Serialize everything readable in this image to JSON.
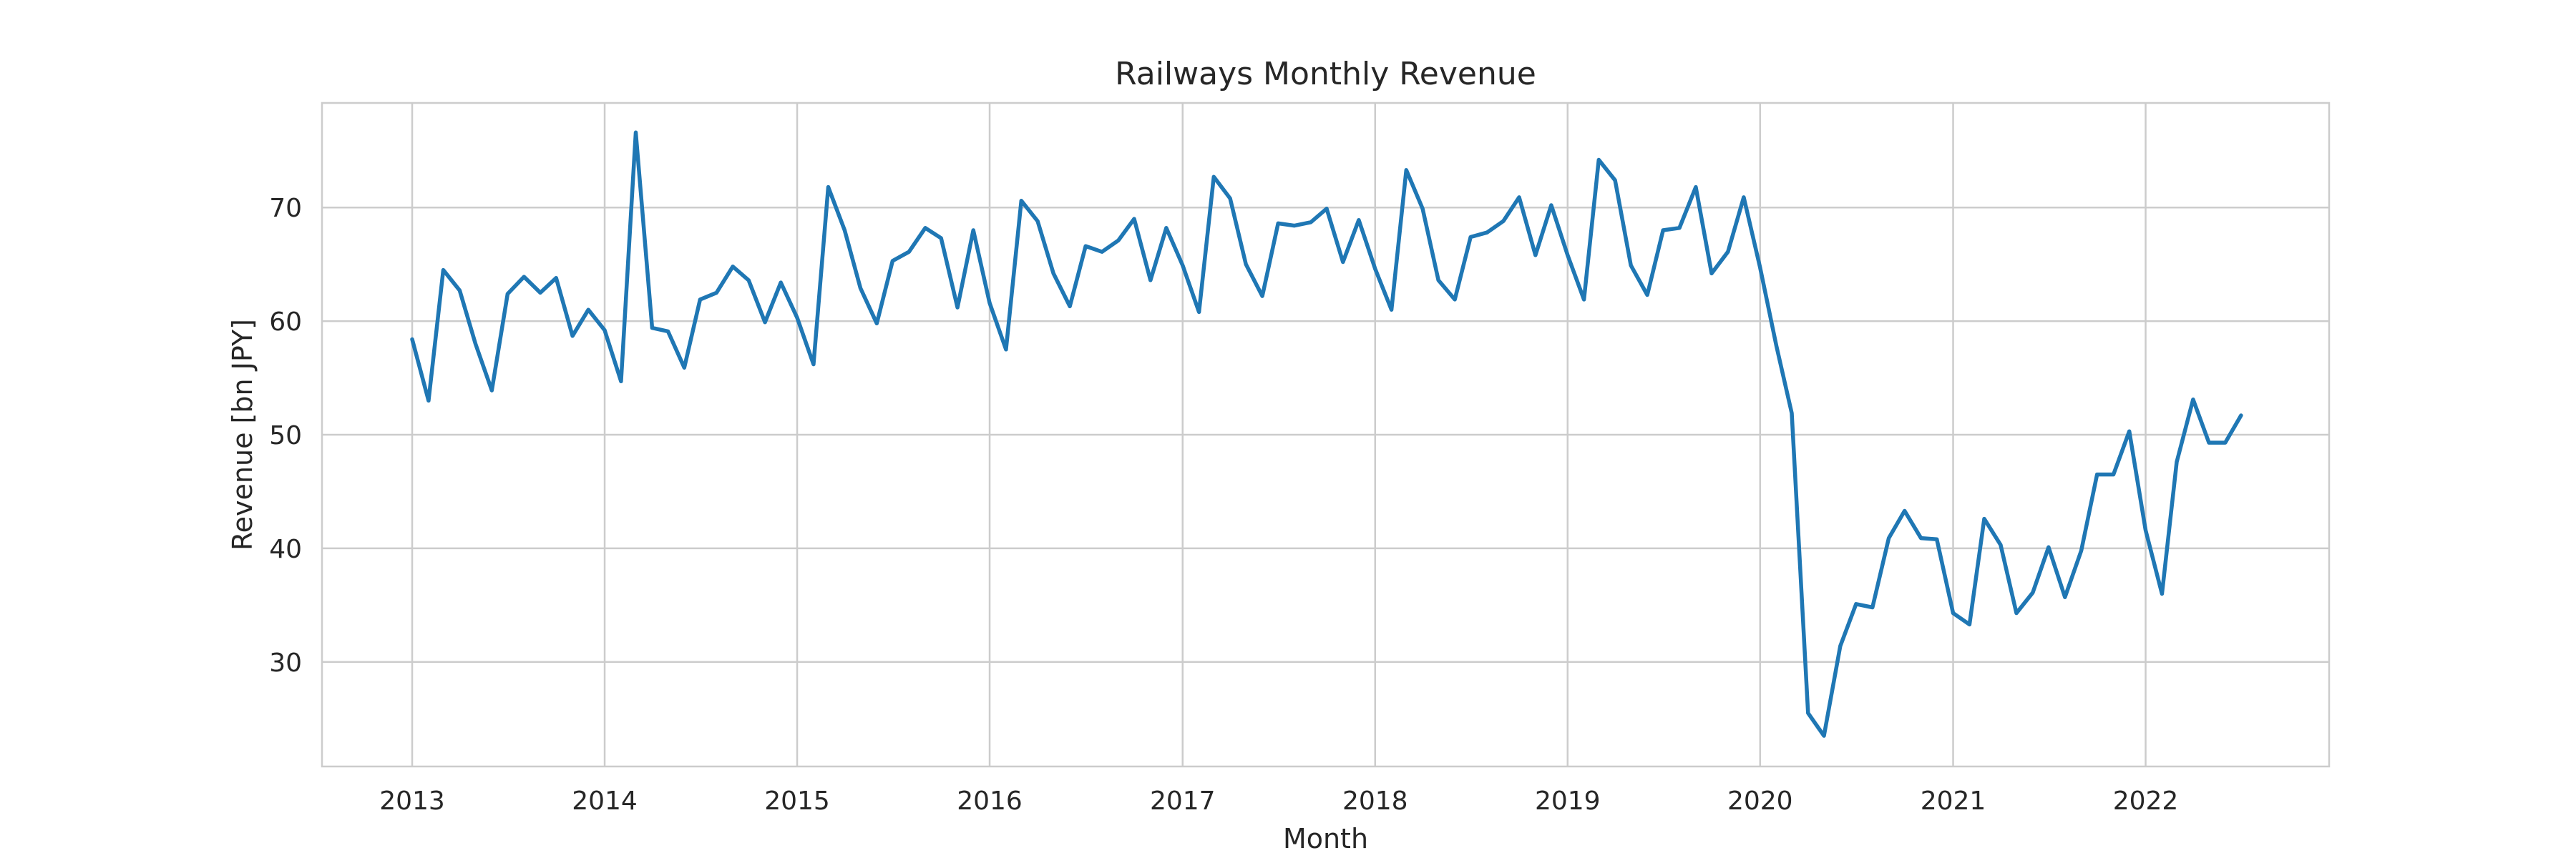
{
  "chart_data": {
    "type": "line",
    "title": "Railways Monthly Revenue",
    "xlabel": "Month",
    "ylabel": "Revenue [bn JPY]",
    "x_start": "2013-01",
    "x_end": "2022-07",
    "xlim": [
      "2012-07-14",
      "2022-12-15"
    ],
    "ylim": [
      20.8,
      79.2
    ],
    "x_ticks": [
      "2013",
      "2014",
      "2015",
      "2016",
      "2017",
      "2018",
      "2019",
      "2020",
      "2021",
      "2022"
    ],
    "y_ticks": [
      30,
      40,
      50,
      60,
      70
    ],
    "grid": true,
    "legend": "none",
    "series": [
      {
        "color": "#1f77b4",
        "values": [
          58.4,
          53.0,
          64.5,
          62.7,
          58.0,
          53.9,
          62.4,
          63.9,
          62.5,
          63.8,
          58.7,
          61.0,
          59.2,
          54.7,
          76.6,
          59.4,
          59.1,
          55.9,
          61.9,
          62.5,
          64.8,
          63.6,
          59.9,
          63.4,
          60.3,
          56.2,
          71.8,
          68.0,
          62.9,
          59.8,
          65.3,
          66.1,
          68.2,
          67.3,
          61.2,
          68.0,
          61.6,
          57.5,
          70.6,
          68.8,
          64.2,
          61.3,
          66.6,
          66.1,
          67.1,
          69.0,
          63.6,
          68.2,
          64.9,
          60.8,
          72.7,
          70.8,
          65.0,
          62.2,
          68.6,
          68.4,
          68.7,
          69.9,
          65.2,
          68.9,
          64.6,
          61.0,
          73.3,
          69.9,
          63.6,
          61.9,
          67.4,
          67.8,
          68.8,
          70.9,
          65.8,
          70.2,
          65.8,
          61.9,
          74.2,
          72.4,
          64.9,
          62.3,
          68.0,
          68.2,
          71.8,
          64.2,
          66.1,
          70.9,
          64.7,
          57.8,
          51.9,
          25.5,
          23.5,
          31.4,
          35.1,
          34.8,
          40.9,
          43.3,
          40.9,
          40.8,
          34.3,
          33.3,
          42.6,
          40.3,
          34.3,
          36.1,
          40.1,
          35.7,
          39.8,
          46.5,
          46.5,
          50.3,
          41.6,
          36.0,
          47.6,
          53.1,
          49.3,
          49.3,
          51.7
        ]
      }
    ]
  }
}
